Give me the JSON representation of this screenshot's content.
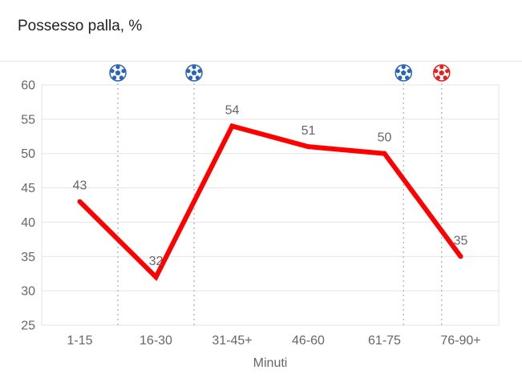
{
  "header": {
    "title": "Possesso palla, %"
  },
  "chart_data": {
    "type": "line",
    "title": "Possesso palla, %",
    "xlabel": "Minuti",
    "ylabel": "",
    "categories": [
      "1-15",
      "16-30",
      "31-45+",
      "46-60",
      "61-75",
      "76-90+"
    ],
    "series": [
      {
        "values": [
          43,
          32,
          54,
          51,
          50,
          35
        ],
        "color": "#ff0000"
      }
    ],
    "ylim": [
      25,
      60
    ],
    "yticks": [
      "60",
      "55",
      "50",
      "45",
      "40",
      "35",
      "30",
      "25"
    ],
    "grid": true,
    "legend": "none",
    "events": [
      {
        "between": [
          0,
          1
        ],
        "icon": "soccer-ball-icon",
        "color": "#2a64b8"
      },
      {
        "between": [
          1,
          2
        ],
        "icon": "soccer-ball-icon",
        "color": "#2a64b8"
      },
      {
        "between": [
          4,
          5
        ],
        "icon": "soccer-ball-icon",
        "color": "#2a64b8",
        "offset": -0.25
      },
      {
        "between": [
          4,
          5
        ],
        "icon": "soccer-ball-icon",
        "color": "#e8201d",
        "offset": 0.25
      }
    ]
  }
}
